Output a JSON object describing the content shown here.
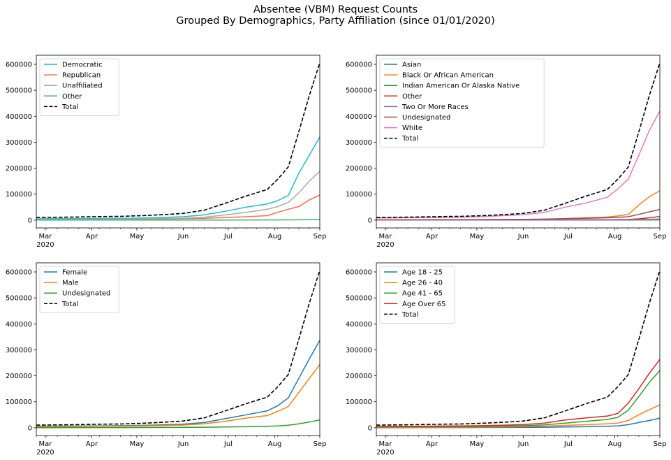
{
  "figure": {
    "title_line1": "Absentee (VBM) Request Counts",
    "title_line2": "Grouped By Demographics, Party Affiliation (since 01/01/2020)"
  },
  "chart_data": [
    {
      "type": "line",
      "title": "",
      "xlabel": "",
      "ylabel": "",
      "x": [
        "2020-02-24",
        "2020-03-09",
        "2020-03-23",
        "2020-04-06",
        "2020-04-20",
        "2020-05-04",
        "2020-05-18",
        "2020-06-01",
        "2020-06-15",
        "2020-06-29",
        "2020-07-13",
        "2020-07-27",
        "2020-08-03",
        "2020-08-10",
        "2020-08-17",
        "2020-08-24",
        "2020-08-31"
      ],
      "xticks": [
        {
          "date": "2020-03-01",
          "label": "Mar",
          "sublabel": "2020"
        },
        {
          "date": "2020-04-01",
          "label": "Apr"
        },
        {
          "date": "2020-05-01",
          "label": "May"
        },
        {
          "date": "2020-06-01",
          "label": "Jun"
        },
        {
          "date": "2020-07-01",
          "label": "Jul"
        },
        {
          "date": "2020-08-01",
          "label": "Aug"
        },
        {
          "date": "2020-09-01",
          "label": "Sep"
        }
      ],
      "ylim": [
        -30000,
        635000
      ],
      "yticks": [
        0,
        100000,
        200000,
        300000,
        400000,
        500000,
        600000
      ],
      "legend": "upper-left",
      "grid": false,
      "series": [
        {
          "name": "Democratic",
          "color": "#17becf",
          "dashed": false,
          "values": [
            5000,
            5500,
            6000,
            6500,
            7000,
            8000,
            10000,
            13000,
            20000,
            34000,
            50000,
            62000,
            75000,
            95000,
            180000,
            250000,
            320000
          ]
        },
        {
          "name": "Republican",
          "color": "#ff6a4c",
          "dashed": false,
          "values": [
            2000,
            2200,
            2500,
            2800,
            3000,
            3500,
            4500,
            5500,
            7000,
            10000,
            13000,
            17000,
            30000,
            42000,
            52000,
            78000,
            96000
          ]
        },
        {
          "name": "Unaffiliated",
          "color": "#aaaaaa",
          "dashed": false,
          "values": [
            3000,
            3300,
            3600,
            4000,
            4500,
            5000,
            6000,
            7500,
            11000,
            20000,
            30000,
            42000,
            52000,
            68000,
            105000,
            150000,
            188000
          ]
        },
        {
          "name": "Other",
          "color": "#3cb371",
          "dashed": false,
          "values": [
            100,
            100,
            120,
            150,
            180,
            200,
            250,
            300,
            400,
            500,
            600,
            700,
            800,
            900,
            1200,
            1500,
            2000
          ]
        },
        {
          "name": "Total",
          "color": "#000000",
          "dashed": true,
          "values": [
            10000,
            11000,
            12000,
            13500,
            14500,
            17000,
            21000,
            26000,
            38000,
            65000,
            93000,
            118000,
            158000,
            205000,
            340000,
            480000,
            606000
          ]
        }
      ]
    },
    {
      "type": "line",
      "title": "",
      "xlabel": "",
      "ylabel": "",
      "x": [
        "2020-02-24",
        "2020-03-09",
        "2020-03-23",
        "2020-04-06",
        "2020-04-20",
        "2020-05-04",
        "2020-05-18",
        "2020-06-01",
        "2020-06-15",
        "2020-06-29",
        "2020-07-13",
        "2020-07-27",
        "2020-08-03",
        "2020-08-10",
        "2020-08-17",
        "2020-08-24",
        "2020-08-31"
      ],
      "xticks": [
        {
          "date": "2020-03-01",
          "label": "Mar",
          "sublabel": "2020"
        },
        {
          "date": "2020-04-01",
          "label": "Apr"
        },
        {
          "date": "2020-05-01",
          "label": "May"
        },
        {
          "date": "2020-06-01",
          "label": "Jun"
        },
        {
          "date": "2020-07-01",
          "label": "Jul"
        },
        {
          "date": "2020-08-01",
          "label": "Aug"
        },
        {
          "date": "2020-09-01",
          "label": "Sep"
        }
      ],
      "ylim": [
        -30000,
        635000
      ],
      "yticks": [
        0,
        100000,
        200000,
        300000,
        400000,
        500000,
        600000
      ],
      "legend": "upper-left",
      "grid": false,
      "series": [
        {
          "name": "Asian",
          "color": "#1f77b4",
          "dashed": false,
          "values": [
            100,
            120,
            150,
            180,
            200,
            250,
            300,
            400,
            500,
            700,
            900,
            1100,
            1300,
            1500,
            2000,
            2500,
            3000
          ]
        },
        {
          "name": "Black Or African American",
          "color": "#ff7f0e",
          "dashed": false,
          "values": [
            500,
            600,
            700,
            800,
            900,
            1000,
            1500,
            2000,
            3000,
            6000,
            9000,
            12000,
            16000,
            22000,
            58000,
            90000,
            113000
          ]
        },
        {
          "name": "Indian American Or Alaska Native",
          "color": "#2ca02c",
          "dashed": false,
          "values": [
            50,
            60,
            70,
            80,
            90,
            100,
            120,
            150,
            200,
            250,
            300,
            350,
            400,
            450,
            600,
            800,
            1000
          ]
        },
        {
          "name": "Other",
          "color": "#d62728",
          "dashed": false,
          "values": [
            100,
            120,
            150,
            180,
            200,
            250,
            300,
            400,
            600,
            900,
            1200,
            1600,
            2000,
            2600,
            5000,
            9000,
            14000
          ]
        },
        {
          "name": "Two Or More Races",
          "color": "#9467bd",
          "dashed": false,
          "values": [
            100,
            110,
            130,
            150,
            170,
            200,
            250,
            300,
            400,
            500,
            650,
            800,
            1000,
            1200,
            2000,
            3000,
            4000
          ]
        },
        {
          "name": "Undesignated",
          "color": "#8c564b",
          "dashed": false,
          "values": [
            1000,
            1100,
            1300,
            1500,
            1700,
            2000,
            2500,
            3000,
            4000,
            5500,
            7000,
            9000,
            11000,
            13000,
            22000,
            32000,
            41000
          ]
        },
        {
          "name": "White",
          "color": "#e377c2",
          "dashed": false,
          "values": [
            8000,
            9000,
            9500,
            10500,
            11500,
            13000,
            17000,
            21000,
            30000,
            50000,
            66000,
            88000,
            120000,
            158000,
            250000,
            345000,
            420000
          ]
        },
        {
          "name": "Total",
          "color": "#000000",
          "dashed": true,
          "values": [
            10000,
            11000,
            12000,
            13500,
            14500,
            17000,
            21000,
            26000,
            38000,
            65000,
            93000,
            118000,
            158000,
            205000,
            340000,
            480000,
            606000
          ]
        }
      ]
    },
    {
      "type": "line",
      "title": "",
      "xlabel": "",
      "ylabel": "",
      "x": [
        "2020-02-24",
        "2020-03-09",
        "2020-03-23",
        "2020-04-06",
        "2020-04-20",
        "2020-05-04",
        "2020-05-18",
        "2020-06-01",
        "2020-06-15",
        "2020-06-29",
        "2020-07-13",
        "2020-07-27",
        "2020-08-03",
        "2020-08-10",
        "2020-08-17",
        "2020-08-24",
        "2020-08-31"
      ],
      "xticks": [
        {
          "date": "2020-03-01",
          "label": "Mar",
          "sublabel": "2020"
        },
        {
          "date": "2020-04-01",
          "label": "Apr"
        },
        {
          "date": "2020-05-01",
          "label": "May"
        },
        {
          "date": "2020-06-01",
          "label": "Jun"
        },
        {
          "date": "2020-07-01",
          "label": "Jul"
        },
        {
          "date": "2020-08-01",
          "label": "Aug"
        },
        {
          "date": "2020-09-01",
          "label": "Sep"
        }
      ],
      "ylim": [
        -30000,
        635000
      ],
      "yticks": [
        0,
        100000,
        200000,
        300000,
        400000,
        500000,
        600000
      ],
      "legend": "upper-left",
      "grid": false,
      "series": [
        {
          "name": "Female",
          "color": "#1f77b4",
          "dashed": false,
          "values": [
            5500,
            6000,
            6500,
            7200,
            8000,
            9000,
            11000,
            14000,
            20000,
            35000,
            50000,
            65000,
            85000,
            115000,
            190000,
            265000,
            337000
          ]
        },
        {
          "name": "Male",
          "color": "#ff7f0e",
          "dashed": false,
          "values": [
            4000,
            4500,
            5000,
            5500,
            6000,
            7000,
            8500,
            10500,
            15000,
            25000,
            37000,
            47000,
            63000,
            82000,
            135000,
            190000,
            243000
          ]
        },
        {
          "name": "Undesignated",
          "color": "#2ca02c",
          "dashed": false,
          "values": [
            500,
            550,
            600,
            700,
            750,
            900,
            1200,
            1500,
            2000,
            3000,
            4000,
            5500,
            7000,
            9500,
            15000,
            22000,
            30000
          ]
        },
        {
          "name": "Total",
          "color": "#000000",
          "dashed": true,
          "values": [
            10000,
            11000,
            12000,
            13500,
            14500,
            17000,
            21000,
            26000,
            38000,
            65000,
            93000,
            118000,
            158000,
            205000,
            340000,
            480000,
            606000
          ]
        }
      ]
    },
    {
      "type": "line",
      "title": "",
      "xlabel": "",
      "ylabel": "",
      "x": [
        "2020-02-24",
        "2020-03-09",
        "2020-03-23",
        "2020-04-06",
        "2020-04-20",
        "2020-05-04",
        "2020-05-18",
        "2020-06-01",
        "2020-06-15",
        "2020-06-29",
        "2020-07-13",
        "2020-07-27",
        "2020-08-03",
        "2020-08-10",
        "2020-08-17",
        "2020-08-24",
        "2020-08-31"
      ],
      "xticks": [
        {
          "date": "2020-03-01",
          "label": "Mar",
          "sublabel": "2020"
        },
        {
          "date": "2020-04-01",
          "label": "Apr"
        },
        {
          "date": "2020-05-01",
          "label": "May"
        },
        {
          "date": "2020-06-01",
          "label": "Jun"
        },
        {
          "date": "2020-07-01",
          "label": "Jul"
        },
        {
          "date": "2020-08-01",
          "label": "Aug"
        },
        {
          "date": "2020-09-01",
          "label": "Sep"
        }
      ],
      "ylim": [
        -30000,
        635000
      ],
      "yticks": [
        0,
        100000,
        200000,
        300000,
        400000,
        500000,
        600000
      ],
      "legend": "upper-left",
      "grid": false,
      "series": [
        {
          "name": "Age 18 - 25",
          "color": "#1f77b4",
          "dashed": false,
          "values": [
            500,
            550,
            600,
            700,
            800,
            900,
            1200,
            1500,
            2000,
            3000,
            4000,
            5500,
            7000,
            12000,
            20000,
            28000,
            37000
          ]
        },
        {
          "name": "Age 26 - 40",
          "color": "#ff7f0e",
          "dashed": false,
          "values": [
            1500,
            1700,
            1900,
            2100,
            2300,
            2700,
            3500,
            4500,
            6000,
            9000,
            12000,
            15000,
            18000,
            28000,
            50000,
            70000,
            88000
          ]
        },
        {
          "name": "Age 41 - 65",
          "color": "#2ca02c",
          "dashed": false,
          "values": [
            3000,
            3300,
            3600,
            4000,
            4500,
            5200,
            6500,
            8000,
            11000,
            18000,
            25000,
            32000,
            40000,
            68000,
            120000,
            175000,
            220000
          ]
        },
        {
          "name": "Age Over 65",
          "color": "#d62728",
          "dashed": false,
          "values": [
            5000,
            5400,
            5800,
            6500,
            7000,
            8000,
            9500,
            12000,
            18000,
            30000,
            38000,
            45000,
            55000,
            95000,
            150000,
            210000,
            263000
          ]
        },
        {
          "name": "Total",
          "color": "#000000",
          "dashed": true,
          "values": [
            10000,
            11000,
            12000,
            13500,
            14500,
            17000,
            21000,
            26000,
            38000,
            65000,
            93000,
            118000,
            158000,
            205000,
            340000,
            480000,
            606000
          ]
        }
      ]
    }
  ]
}
